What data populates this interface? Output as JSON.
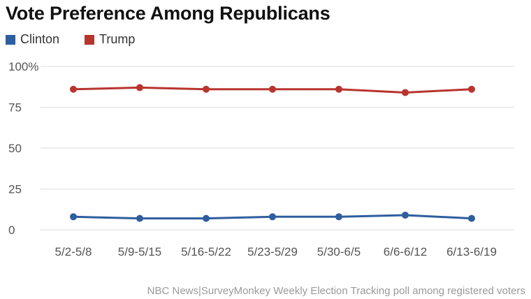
{
  "chart_data": {
    "type": "line",
    "title": "Vote Preference Among Republicans",
    "categories": [
      "5/2-5/8",
      "5/9-5/15",
      "5/16-5/22",
      "5/23-5/29",
      "5/30-6/5",
      "6/6-6/12",
      "6/13-6/19"
    ],
    "series": [
      {
        "name": "Clinton",
        "color": "#2e5e9e",
        "values": [
          8,
          7,
          7,
          8,
          8,
          9,
          7
        ]
      },
      {
        "name": "Trump",
        "color": "#b8352e",
        "values": [
          86,
          87,
          86,
          86,
          86,
          84,
          86
        ]
      }
    ],
    "yticks": [
      "0",
      "25",
      "50",
      "75",
      "100%"
    ],
    "ylim": [
      0,
      100
    ],
    "grid": true,
    "legend_position": "top-left",
    "source": "NBC News|SurveyMonkey Weekly Election Tracking poll among registered voters"
  }
}
